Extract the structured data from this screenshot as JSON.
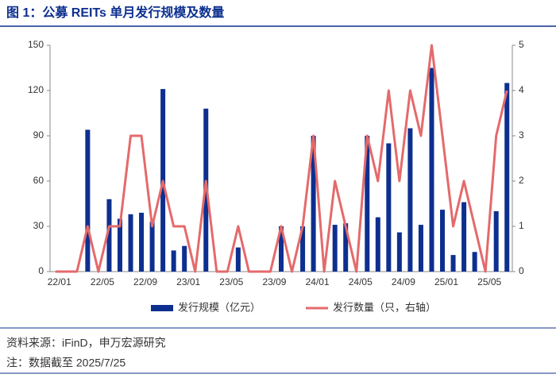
{
  "title": "图 1：公募 REITs 单月发行规模及数量",
  "chart_data": {
    "type": "bar-line",
    "categories": [
      "22/01",
      null,
      null,
      null,
      "22/05",
      null,
      null,
      null,
      "22/09",
      null,
      null,
      null,
      "23/01",
      null,
      null,
      null,
      "23/05",
      null,
      null,
      null,
      "23/09",
      null,
      null,
      null,
      "24/01",
      null,
      null,
      null,
      "24/05",
      null,
      null,
      null,
      "24/09",
      null,
      null,
      null,
      "25/01",
      null,
      null,
      null,
      "25/05",
      null,
      null
    ],
    "series": [
      {
        "name": "发行规模（亿元）",
        "type": "bar",
        "color": "#0d2f8f",
        "axis": "y",
        "values": [
          0,
          0,
          0,
          94,
          0,
          48,
          35,
          38,
          39,
          33,
          121,
          14,
          17,
          0,
          108,
          0,
          0,
          16,
          0,
          0,
          0,
          30,
          0,
          30,
          90,
          0,
          31,
          32,
          0,
          90,
          36,
          85,
          26,
          95,
          31,
          135,
          41,
          11,
          46,
          13,
          0,
          40,
          125
        ]
      },
      {
        "name": "发行数量（只，右轴）",
        "type": "line",
        "color": "#e46a6b",
        "axis": "y2",
        "values": [
          0,
          0,
          0,
          1,
          0,
          1,
          1,
          3,
          3,
          1,
          2,
          1,
          1,
          0,
          2,
          0,
          0,
          1,
          0,
          0,
          0,
          1,
          0,
          1,
          3,
          0,
          2,
          1,
          0,
          3,
          2,
          4,
          2,
          4,
          3,
          5,
          3,
          1,
          2,
          1,
          0,
          3,
          4
        ]
      }
    ],
    "ylim": [
      0,
      150
    ],
    "yticks": [
      0,
      30,
      60,
      90,
      120,
      150
    ],
    "y2lim": [
      0,
      5
    ],
    "y2ticks": [
      0,
      1,
      2,
      3,
      4,
      5
    ],
    "grid": false,
    "legend": "bottom"
  },
  "source": "资料来源：iFinD，申万宏源研究",
  "note": "注：数据截至 2025/7/25"
}
